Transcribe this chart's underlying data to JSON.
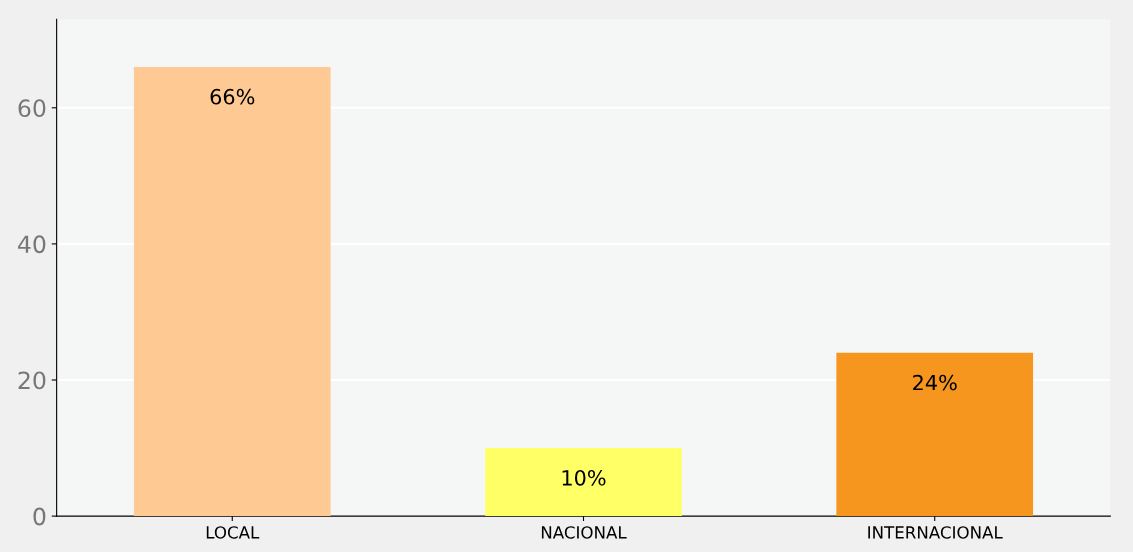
{
  "chart_data": {
    "type": "bar",
    "categories": [
      "LOCAL",
      "NACIONAL",
      "INTERNACIONAL"
    ],
    "values": [
      66,
      10,
      24
    ],
    "colors": [
      "#ffc993",
      "#ffff66",
      "#f7961e"
    ],
    "value_labels": [
      "66%",
      "10%",
      "24%"
    ],
    "ylim": [
      0,
      73
    ],
    "yticks": [
      0,
      20,
      40,
      60
    ],
    "grid": "y"
  }
}
